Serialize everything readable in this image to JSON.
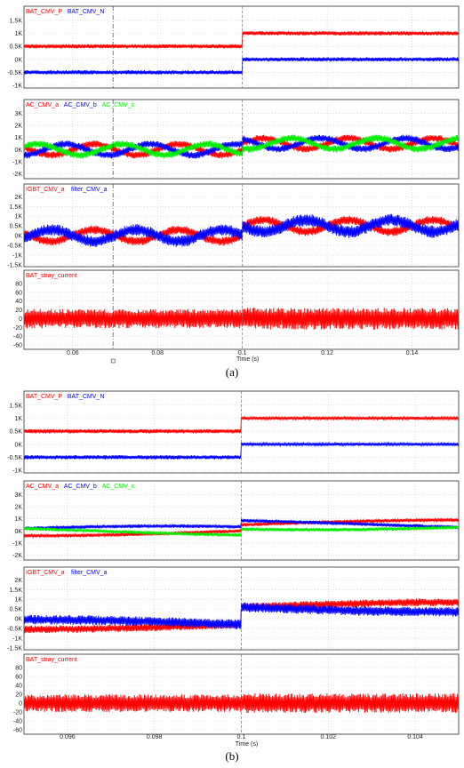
{
  "chart_data": [
    {
      "type": "line",
      "caption": "(a)",
      "xlabel": "Time (s)",
      "xlim": [
        0.0485,
        0.151
      ],
      "x_ticks": [
        0.06,
        0.08,
        0.1,
        0.12,
        0.14
      ],
      "x_tick_labels": [
        "0.06",
        "0.08",
        "0.1",
        "0.12",
        "0.14"
      ],
      "marker_x": 0.0695,
      "step_x": 0.1,
      "grid": true,
      "panels": [
        {
          "series": [
            {
              "name": "BAT_CMV_P",
              "color": "#ff0000",
              "before": {
                "mean": 500,
                "amp": 80
              },
              "after": {
                "mean": 1000,
                "amp": 80
              }
            },
            {
              "name": "BAT_CMV_N",
              "color": "#0000ff",
              "before": {
                "mean": -500,
                "amp": 80
              },
              "after": {
                "mean": 0,
                "amp": 80
              }
            }
          ],
          "ylim": [
            -1100,
            1700
          ],
          "y_ticks": [
            1500,
            1000,
            500,
            0,
            -500,
            -1000
          ],
          "y_tick_labels": [
            "1.5K",
            "1K",
            "0.5K",
            "0K",
            "-0.5K",
            "-1K"
          ]
        },
        {
          "series": [
            {
              "name": "AC_CMV_a",
              "color": "#ff0000",
              "before": {
                "mean": 0,
                "sine": 450,
                "band": 600
              },
              "after": {
                "mean": 500,
                "sine": 450,
                "band": 600
              }
            },
            {
              "name": "AC_CMV_b",
              "color": "#0000ff",
              "before": {
                "mean": 0,
                "sine": 450,
                "band": 600
              },
              "after": {
                "mean": 500,
                "sine": 450,
                "band": 600
              }
            },
            {
              "name": "AC_CMV_c",
              "color": "#00ee00",
              "before": {
                "mean": 0,
                "sine": 450,
                "band": 600
              },
              "after": {
                "mean": 500,
                "sine": 450,
                "band": 600
              }
            }
          ],
          "ylim": [
            -2400,
            3400
          ],
          "y_ticks": [
            3000,
            2000,
            1000,
            0,
            -1000,
            -2000
          ],
          "y_tick_labels": [
            "3K",
            "2K",
            "1K",
            "0K",
            "-1K",
            "-2K"
          ]
        },
        {
          "series": [
            {
              "name": "IGBT_CMV_a",
              "color": "#ff0000",
              "before": {
                "mean": 0,
                "sine": 300,
                "band": 450
              },
              "after": {
                "mean": 500,
                "sine": 300,
                "band": 450
              }
            },
            {
              "name": "filter_CMV_a",
              "color": "#0000ff",
              "before": {
                "mean": 0,
                "sine": 300,
                "band": 600
              },
              "after": {
                "mean": 500,
                "sine": 300,
                "band": 650
              }
            }
          ],
          "ylim": [
            -1600,
            2200
          ],
          "y_ticks": [
            2000,
            1500,
            1000,
            500,
            0,
            -500,
            -1000,
            -1500
          ],
          "y_tick_labels": [
            "2K",
            "1.5K",
            "1K",
            "0.5K",
            "0K",
            "-0.5K",
            "-1K",
            "-1.5K"
          ]
        },
        {
          "series": [
            {
              "name": "BAT_stray_current",
              "color": "#ff0000",
              "before": {
                "mean": 0,
                "amp": 22
              },
              "after": {
                "mean": 0,
                "amp": 25
              }
            }
          ],
          "ylim": [
            -70,
            90
          ],
          "y_ticks": [
            80,
            60,
            40,
            20,
            0,
            -20,
            -40,
            -60
          ],
          "y_tick_labels": [
            "80",
            "60",
            "40",
            "20",
            "0",
            "-20",
            "-40",
            "-60"
          ]
        }
      ]
    },
    {
      "type": "line",
      "caption": "(b)",
      "xlabel": "Time (s)",
      "xlim": [
        0.095,
        0.105
      ],
      "x_ticks": [
        0.096,
        0.098,
        0.1,
        0.102,
        0.104
      ],
      "x_tick_labels": [
        "0.096",
        "0.098",
        "0.1",
        "0.102",
        "0.104"
      ],
      "step_x": 0.1,
      "grid": true,
      "panels": [
        {
          "series": [
            {
              "name": "BAT_CMV_P",
              "color": "#ff0000",
              "before": {
                "mean": 500,
                "amp": 80
              },
              "after": {
                "mean": 1000,
                "amp": 60
              }
            },
            {
              "name": "BAT_CMV_N",
              "color": "#0000ff",
              "before": {
                "mean": -500,
                "amp": 80
              },
              "after": {
                "mean": 0,
                "amp": 60
              }
            }
          ],
          "ylim": [
            -1100,
            1700
          ],
          "y_ticks": [
            1500,
            1000,
            500,
            0,
            -500,
            -1000
          ],
          "y_tick_labels": [
            "1.5K",
            "1K",
            "0.5K",
            "0K",
            "-0.5K",
            "-1K"
          ]
        },
        {
          "series": [
            {
              "name": "AC_CMV_a",
              "color": "#ff0000",
              "before": {
                "mean": 0,
                "sine": 400,
                "band": 300
              },
              "after": {
                "mean": 500,
                "sine": 400,
                "band": 300
              }
            },
            {
              "name": "AC_CMV_b",
              "color": "#0000ff",
              "before": {
                "mean": 0,
                "sine": 400,
                "band": 300
              },
              "after": {
                "mean": 500,
                "sine": 400,
                "band": 300
              }
            },
            {
              "name": "AC_CMV_c",
              "color": "#00ee00",
              "before": {
                "mean": 0,
                "sine": 400,
                "band": 300
              },
              "after": {
                "mean": 500,
                "sine": 400,
                "band": 300
              }
            }
          ],
          "ylim": [
            -2400,
            3400
          ],
          "y_ticks": [
            3000,
            2000,
            1000,
            0,
            -1000,
            -2000
          ],
          "y_tick_labels": [
            "3K",
            "2K",
            "1K",
            "0K",
            "-1K",
            "-2K"
          ]
        },
        {
          "series": [
            {
              "name": "IGBT_CMV_a",
              "color": "#ff0000",
              "before": {
                "mean": -300,
                "sine": 250,
                "band": 400
              },
              "after": {
                "mean": 600,
                "sine": 250,
                "band": 400
              }
            },
            {
              "name": "filter_CMV_a",
              "color": "#0000ff",
              "before": {
                "mean": -300,
                "sine": 250,
                "band": 500
              },
              "after": {
                "mean": 600,
                "sine": 250,
                "band": 500
              }
            }
          ],
          "ylim": [
            -1600,
            2200
          ],
          "y_ticks": [
            2000,
            1500,
            1000,
            500,
            0,
            -500,
            -1000,
            -1500
          ],
          "y_tick_labels": [
            "2K",
            "1.5K",
            "1K",
            "0.5K",
            "0K",
            "-0.5K",
            "-1K",
            "-1.5K"
          ]
        },
        {
          "series": [
            {
              "name": "BAT_stray_current",
              "color": "#ff0000",
              "before": {
                "mean": 0,
                "amp": 20
              },
              "after": {
                "mean": 0,
                "amp": 22
              }
            }
          ],
          "ylim": [
            -70,
            90
          ],
          "y_ticks": [
            80,
            60,
            40,
            20,
            0,
            -20,
            -40,
            -60
          ],
          "y_tick_labels": [
            "80",
            "60",
            "40",
            "20",
            "0",
            "-20",
            "-40",
            "-60"
          ]
        }
      ]
    }
  ]
}
